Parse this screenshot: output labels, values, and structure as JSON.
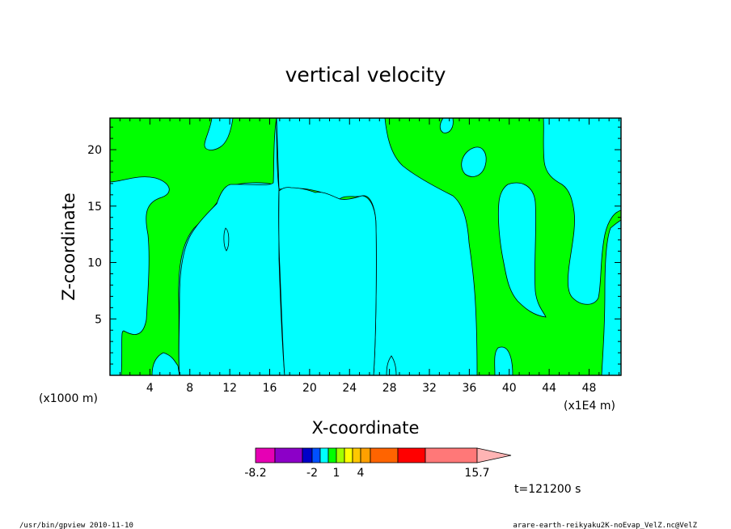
{
  "chart_data": {
    "type": "heatmap",
    "title": "vertical velocity",
    "xlabel": "X-coordinate",
    "ylabel": "Z-coordinate",
    "x_unit_left": "(x1000 m)",
    "x_unit_right": "(x1E4 m)",
    "xlim": [
      0,
      51.2
    ],
    "ylim": [
      0,
      22.8
    ],
    "x_ticks": [
      "4",
      "8",
      "12",
      "16",
      "20",
      "24",
      "28",
      "32",
      "36",
      "40",
      "44",
      "48"
    ],
    "y_ticks": [
      "5",
      "10",
      "15",
      "20"
    ],
    "fill_colors": {
      "positive": "#00ff00",
      "negative": "#00ffff"
    },
    "colorbar": {
      "colors": [
        "#e600b4",
        "#8c00c8",
        "#0000c8",
        "#0050ff",
        "#00ffff",
        "#00ff00",
        "#a0ff00",
        "#ffff00",
        "#ffc800",
        "#ffa000",
        "#ff6400",
        "#ff0000",
        "#ff7878",
        "#ffb4b4"
      ],
      "labels": [
        "-8.2",
        "-2",
        "1",
        "4",
        "15.7"
      ]
    },
    "time_label": "t=121200 s"
  },
  "footer": {
    "left": "/usr/bin/gpview   2010-11-10",
    "right": "arare-earth-reikyaku2K-noEvap_VelZ.nc@VelZ"
  }
}
